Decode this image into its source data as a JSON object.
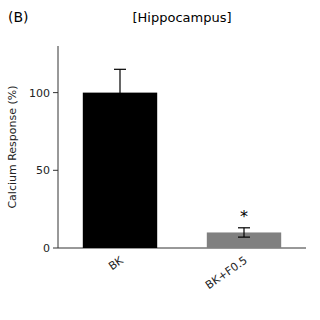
{
  "chart_data": {
    "type": "bar",
    "title": "[Hippocampus]",
    "ylabel": "Calcium Response (%)",
    "categories": [
      "BK",
      "BK+F0.5"
    ],
    "values": [
      100,
      10
    ],
    "errors": [
      15,
      3
    ],
    "colors": [
      "#000000",
      "#808080"
    ],
    "ylim": [
      0,
      130
    ],
    "yticks": [
      0,
      50,
      100
    ],
    "grid": false,
    "annotations": [
      "(B)",
      "*"
    ]
  }
}
